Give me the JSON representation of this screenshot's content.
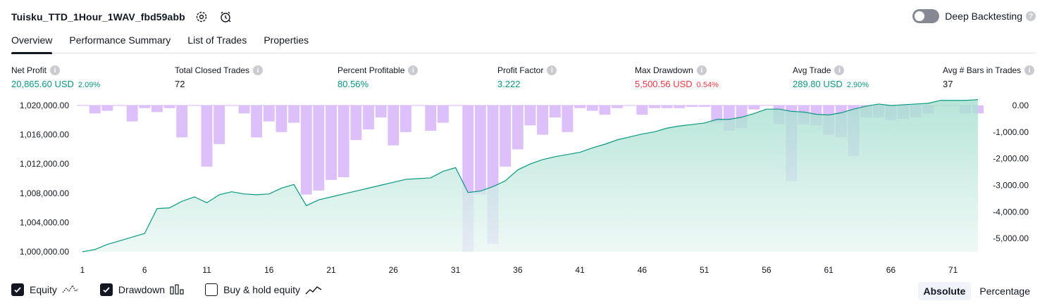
{
  "header": {
    "title": "Tuisku_TTD_1Hour_1WAV_fbd59abb",
    "icons": [
      "settings-icon",
      "alert-clock-icon"
    ]
  },
  "deep_backtesting": {
    "label": "Deep Backtesting",
    "enabled": false
  },
  "tabs": [
    {
      "label": "Overview",
      "active": true
    },
    {
      "label": "Performance Summary",
      "active": false
    },
    {
      "label": "List of Trades",
      "active": false
    },
    {
      "label": "Properties",
      "active": false
    }
  ],
  "metrics": {
    "net_profit": {
      "label": "Net Profit",
      "value": "20,865.60 USD",
      "pct": "2.09%"
    },
    "total_closed_trades": {
      "label": "Total Closed Trades",
      "value": "72"
    },
    "percent_profitable": {
      "label": "Percent Profitable",
      "value": "80.56%"
    },
    "profit_factor": {
      "label": "Profit Factor",
      "value": "3.222"
    },
    "max_drawdown": {
      "label": "Max Drawdown",
      "value": "5,500.56 USD",
      "pct": "0.54%"
    },
    "avg_trade": {
      "label": "Avg Trade",
      "value": "289.80 USD",
      "pct": "2.90%"
    },
    "avg_bars": {
      "label": "Avg # Bars in Trades",
      "value": "37"
    }
  },
  "chart_data": {
    "type": "line",
    "x": [
      1,
      2,
      3,
      4,
      5,
      6,
      7,
      8,
      9,
      10,
      11,
      12,
      13,
      14,
      15,
      16,
      17,
      18,
      19,
      20,
      21,
      22,
      23,
      24,
      25,
      26,
      27,
      28,
      29,
      30,
      31,
      32,
      33,
      34,
      35,
      36,
      37,
      38,
      39,
      40,
      41,
      42,
      43,
      44,
      45,
      46,
      47,
      48,
      49,
      50,
      51,
      52,
      53,
      54,
      55,
      56,
      57,
      58,
      59,
      60,
      61,
      62,
      63,
      64,
      65,
      66,
      67,
      68,
      69,
      70,
      71,
      72,
      73
    ],
    "x_ticks": [
      "1",
      "6",
      "11",
      "16",
      "21",
      "26",
      "31",
      "36",
      "41",
      "46",
      "51",
      "56",
      "61",
      "66",
      "71"
    ],
    "left_ticks": [
      "1,020,000.00",
      "1,016,000.00",
      "1,012,000.00",
      "1,008,000.00",
      "1,004,000.00",
      "1,000,000.00"
    ],
    "right_ticks": [
      "0.00",
      "-1,000.00",
      "-2,000.00",
      "-3,000.00",
      "-4,000.00",
      "-5,000.00"
    ],
    "left_ylim": [
      1000000,
      1020000
    ],
    "right_ylim": [
      -5500,
      0
    ],
    "series": [
      {
        "name": "Equity",
        "color": "#089981",
        "values": [
          1000000,
          1000300,
          1001000,
          1001500,
          1002000,
          1002500,
          1005900,
          1006000,
          1006900,
          1007500,
          1006700,
          1007800,
          1008200,
          1007900,
          1007800,
          1007900,
          1008700,
          1009200,
          1006300,
          1007100,
          1007500,
          1007900,
          1008300,
          1008700,
          1009100,
          1009500,
          1009900,
          1010000,
          1010100,
          1011000,
          1011500,
          1008100,
          1008300,
          1008900,
          1009700,
          1011200,
          1012000,
          1012600,
          1013000,
          1013300,
          1013600,
          1014200,
          1014700,
          1015300,
          1015700,
          1016100,
          1016400,
          1016900,
          1017200,
          1017400,
          1017600,
          1018100,
          1018100,
          1018400,
          1018900,
          1019500,
          1019500,
          1019200,
          1019100,
          1018800,
          1018700,
          1019000,
          1019500,
          1019900,
          1020200,
          1020000,
          1020100,
          1020200,
          1020300,
          1020700,
          1020700,
          1020700,
          1020800
        ]
      },
      {
        "name": "Drawdown",
        "color": "#c77dff",
        "values": [
          0,
          -300,
          -200,
          0,
          -600,
          -100,
          -250,
          -100,
          -1200,
          0,
          -2300,
          -1450,
          0,
          -300,
          -1200,
          -600,
          -1000,
          -650,
          -3350,
          -3200,
          -2800,
          -2700,
          -1300,
          -900,
          -450,
          -1500,
          -1000,
          0,
          -950,
          -650,
          0,
          -5500,
          -3350,
          -5200,
          -2300,
          -1650,
          -750,
          -1100,
          -450,
          -1000,
          -100,
          -200,
          -350,
          -100,
          0,
          -350,
          -100,
          -100,
          -100,
          -50,
          -50,
          -650,
          -950,
          -850,
          -150,
          0,
          -700,
          -2850,
          -700,
          -750,
          -1100,
          -1200,
          -1900,
          -450,
          -450,
          -550,
          -500,
          -450,
          -300,
          0,
          0,
          -300,
          -300
        ]
      }
    ]
  },
  "legend": [
    {
      "label": "Equity",
      "checked": true,
      "icon": "equity-line-icon"
    },
    {
      "label": "Drawdown",
      "checked": true,
      "icon": "drawdown-bars-icon"
    },
    {
      "label": "Buy & hold equity",
      "checked": false,
      "icon": "buy-hold-line-icon"
    }
  ],
  "mode": {
    "absolute": "Absolute",
    "percentage": "Percentage",
    "selected": "Absolute"
  }
}
